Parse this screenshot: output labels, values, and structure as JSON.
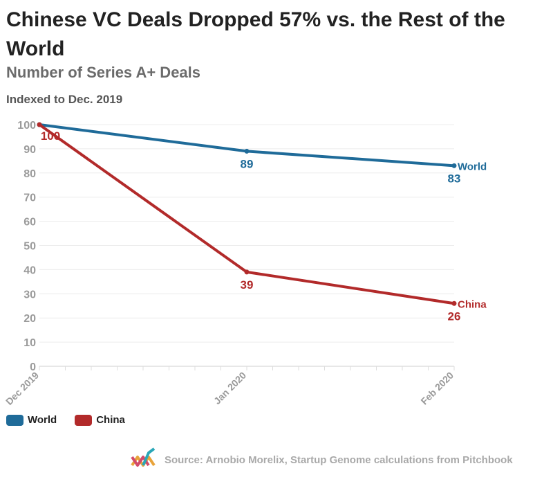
{
  "header": {
    "title": "Chinese VC Deals Dropped 57% vs. the Rest of the World",
    "subtitle": "Number of Series A+ Deals",
    "note": "Indexed to Dec. 2019"
  },
  "chart_data": {
    "type": "line",
    "categories": [
      "Dec 2019",
      "Jan 2020",
      "Feb 2020"
    ],
    "series": [
      {
        "name": "World",
        "values": [
          100,
          89,
          83
        ],
        "color": "#1f6b99",
        "labels": [
          null,
          "89",
          "83"
        ]
      },
      {
        "name": "China",
        "values": [
          100,
          39,
          26
        ],
        "color": "#b22a2a",
        "labels": [
          "100",
          "39",
          "26"
        ]
      }
    ],
    "ylim": [
      0,
      100
    ],
    "yticks": [
      0,
      10,
      20,
      30,
      40,
      50,
      60,
      70,
      80,
      90,
      100
    ],
    "xlabel": "",
    "ylabel": ""
  },
  "legend": [
    {
      "name": "World",
      "color": "#1f6b99"
    },
    {
      "name": "China",
      "color": "#b22a2a"
    }
  ],
  "footer": {
    "source": "Source: Arnobio Morelix, Startup Genome calculations from Pitchbook"
  }
}
